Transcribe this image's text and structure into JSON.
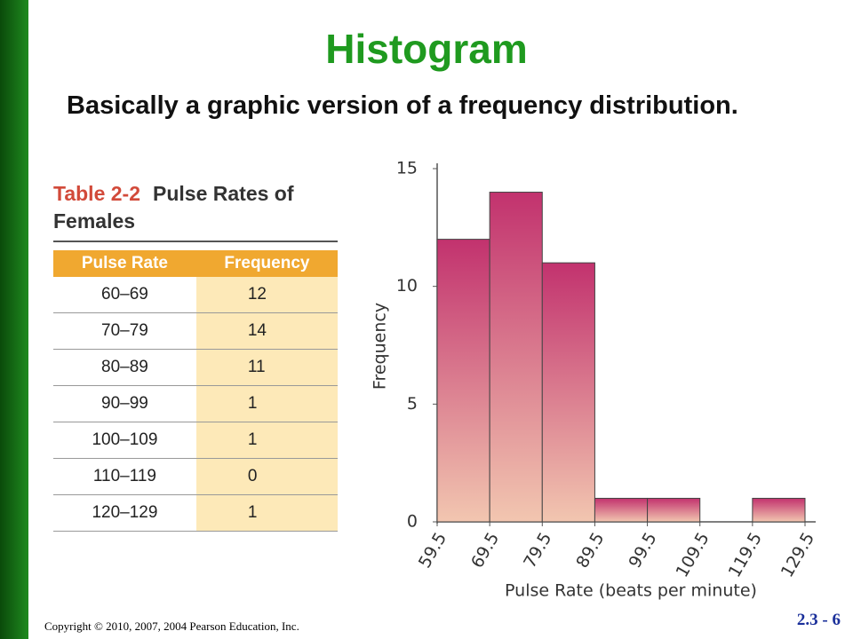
{
  "slide": {
    "title": "Histogram",
    "subtitle": "Basically a graphic version of a frequency distribution.",
    "copyright": "Copyright © 2010, 2007, 2004 Pearson Education, Inc.",
    "page": "2.3 - 6"
  },
  "table": {
    "label": "Table 2-2",
    "title": "Pulse Rates of Females",
    "headers": [
      "Pulse Rate",
      "Frequency"
    ],
    "rows": [
      [
        "60–69",
        "12"
      ],
      [
        "70–79",
        "14"
      ],
      [
        "80–89",
        "11"
      ],
      [
        "90–99",
        "1"
      ],
      [
        "100–109",
        "1"
      ],
      [
        "110–119",
        "0"
      ],
      [
        "120–129",
        "1"
      ]
    ]
  },
  "chart_data": {
    "type": "histogram",
    "xlabel": "Pulse Rate (beats per minute)",
    "ylabel": "Frequency",
    "bins": [
      59.5,
      69.5,
      79.5,
      89.5,
      99.5,
      109.5,
      119.5,
      129.5
    ],
    "values": [
      12,
      14,
      11,
      1,
      1,
      0,
      1
    ],
    "color": "#c2326e",
    "xlim": [
      59.5,
      129.5
    ],
    "xticks": [
      59.5,
      69.5,
      79.5,
      89.5,
      99.5,
      109.5,
      119.5,
      129.5
    ],
    "ylim": [
      0,
      15
    ],
    "yticks": [
      0,
      5,
      10,
      15
    ]
  }
}
